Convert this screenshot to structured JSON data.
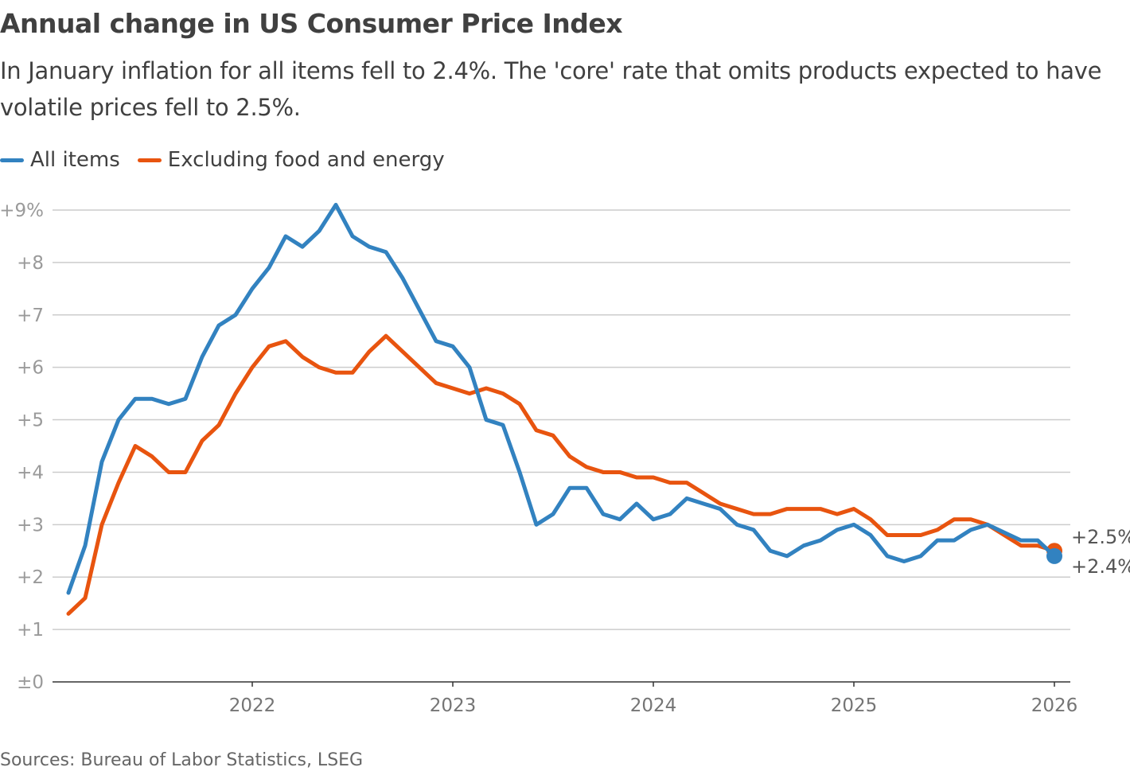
{
  "title": "Annual change in US Consumer Price Index",
  "subtitle": "In January inflation for all items fell to 2.4%. The 'core' rate that omits products expected to have volatile prices fell to 2.5%.",
  "source": "Sources: Bureau of Labor Statistics, LSEG",
  "chart_data": {
    "type": "line",
    "title": "Annual change in US Consumer Price Index",
    "xlabel": "",
    "ylabel": "",
    "ylim": [
      0,
      9
    ],
    "grid": true,
    "legend_placement": "top-left",
    "y_ticks": [
      "±0",
      "+1",
      "+2",
      "+3",
      "+4",
      "+5",
      "+6",
      "+7",
      "+8",
      "+9%"
    ],
    "x_ticks": [
      "2022",
      "2023",
      "2024",
      "2025",
      "2026"
    ],
    "x": [
      "2021-02",
      "2021-03",
      "2021-04",
      "2021-05",
      "2021-06",
      "2021-07",
      "2021-08",
      "2021-09",
      "2021-10",
      "2021-11",
      "2021-12",
      "2022-01",
      "2022-02",
      "2022-03",
      "2022-04",
      "2022-05",
      "2022-06",
      "2022-07",
      "2022-08",
      "2022-09",
      "2022-10",
      "2022-11",
      "2022-12",
      "2023-01",
      "2023-02",
      "2023-03",
      "2023-04",
      "2023-05",
      "2023-06",
      "2023-07",
      "2023-08",
      "2023-09",
      "2023-10",
      "2023-11",
      "2023-12",
      "2024-01",
      "2024-02",
      "2024-03",
      "2024-04",
      "2024-05",
      "2024-06",
      "2024-07",
      "2024-08",
      "2024-09",
      "2024-10",
      "2024-11",
      "2024-12",
      "2025-01",
      "2025-02",
      "2025-03",
      "2025-04",
      "2025-05",
      "2025-06",
      "2025-07",
      "2025-08",
      "2025-09",
      "2025-10",
      "2025-11",
      "2025-12",
      "2026-01"
    ],
    "series": [
      {
        "name": "All items",
        "color": "#3282c0",
        "end_label": "+2.4%",
        "values": [
          1.7,
          2.6,
          4.2,
          5.0,
          5.4,
          5.4,
          5.3,
          5.4,
          6.2,
          6.8,
          7.0,
          7.5,
          7.9,
          8.5,
          8.3,
          8.6,
          9.1,
          8.5,
          8.3,
          8.2,
          7.7,
          7.1,
          6.5,
          6.4,
          6.0,
          5.0,
          4.9,
          4.0,
          3.0,
          3.2,
          3.7,
          3.7,
          3.2,
          3.1,
          3.4,
          3.1,
          3.2,
          3.5,
          3.4,
          3.3,
          3.0,
          2.9,
          2.5,
          2.4,
          2.6,
          2.7,
          2.9,
          3.0,
          2.8,
          2.4,
          2.3,
          2.4,
          2.7,
          2.7,
          2.9,
          3.0,
          null,
          2.7,
          2.7,
          2.4
        ]
      },
      {
        "name": "Excluding food and energy",
        "color": "#e8540f",
        "end_label": "+2.5%",
        "values": [
          1.3,
          1.6,
          3.0,
          3.8,
          4.5,
          4.3,
          4.0,
          4.0,
          4.6,
          4.9,
          5.5,
          6.0,
          6.4,
          6.5,
          6.2,
          6.0,
          5.9,
          5.9,
          6.3,
          6.6,
          6.3,
          6.0,
          5.7,
          5.6,
          5.5,
          5.6,
          5.5,
          5.3,
          4.8,
          4.7,
          4.3,
          4.1,
          4.0,
          4.0,
          3.9,
          3.9,
          3.8,
          3.8,
          3.6,
          3.4,
          3.3,
          3.2,
          3.2,
          3.3,
          3.3,
          3.3,
          3.2,
          3.3,
          3.1,
          2.8,
          2.8,
          2.8,
          2.9,
          3.1,
          3.1,
          3.0,
          null,
          2.6,
          2.6,
          2.5
        ]
      }
    ]
  }
}
